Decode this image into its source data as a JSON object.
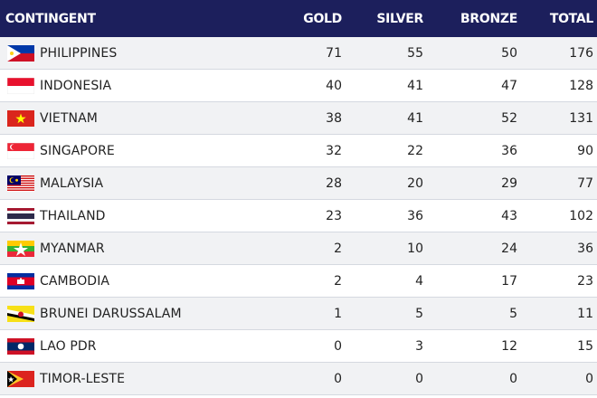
{
  "header": {
    "contingent": "CONTINGENT",
    "gold": "GOLD",
    "silver": "SILVER",
    "bronze": "BRONZE",
    "total": "TOTAL"
  },
  "rows": [
    {
      "name": "PHILIPPINES",
      "flag": "philippines-flag",
      "gold": "71",
      "silver": "55",
      "bronze": "50",
      "total": "176"
    },
    {
      "name": "INDONESIA",
      "flag": "indonesia-flag",
      "gold": "40",
      "silver": "41",
      "bronze": "47",
      "total": "128"
    },
    {
      "name": "VIETNAM",
      "flag": "vietnam-flag",
      "gold": "38",
      "silver": "41",
      "bronze": "52",
      "total": "131"
    },
    {
      "name": "SINGAPORE",
      "flag": "singapore-flag",
      "gold": "32",
      "silver": "22",
      "bronze": "36",
      "total": "90"
    },
    {
      "name": "MALAYSIA",
      "flag": "malaysia-flag",
      "gold": "28",
      "silver": "20",
      "bronze": "29",
      "total": "77"
    },
    {
      "name": "THAILAND",
      "flag": "thailand-flag",
      "gold": "23",
      "silver": "36",
      "bronze": "43",
      "total": "102"
    },
    {
      "name": "MYANMAR",
      "flag": "myanmar-flag",
      "gold": "2",
      "silver": "10",
      "bronze": "24",
      "total": "36"
    },
    {
      "name": "CAMBODIA",
      "flag": "cambodia-flag",
      "gold": "2",
      "silver": "4",
      "bronze": "17",
      "total": "23"
    },
    {
      "name": "BRUNEI DARUSSALAM",
      "flag": "brunei-flag",
      "gold": "1",
      "silver": "5",
      "bronze": "5",
      "total": "11"
    },
    {
      "name": "LAO PDR",
      "flag": "laos-flag",
      "gold": "0",
      "silver": "3",
      "bronze": "12",
      "total": "15"
    },
    {
      "name": "TIMOR-LESTE",
      "flag": "timor-leste-flag",
      "gold": "0",
      "silver": "0",
      "bronze": "0",
      "total": "0"
    }
  ],
  "colors": {
    "header_bg": "#1c1f5c",
    "row_alt": "#f1f2f4",
    "divider": "#d5d9e0"
  }
}
